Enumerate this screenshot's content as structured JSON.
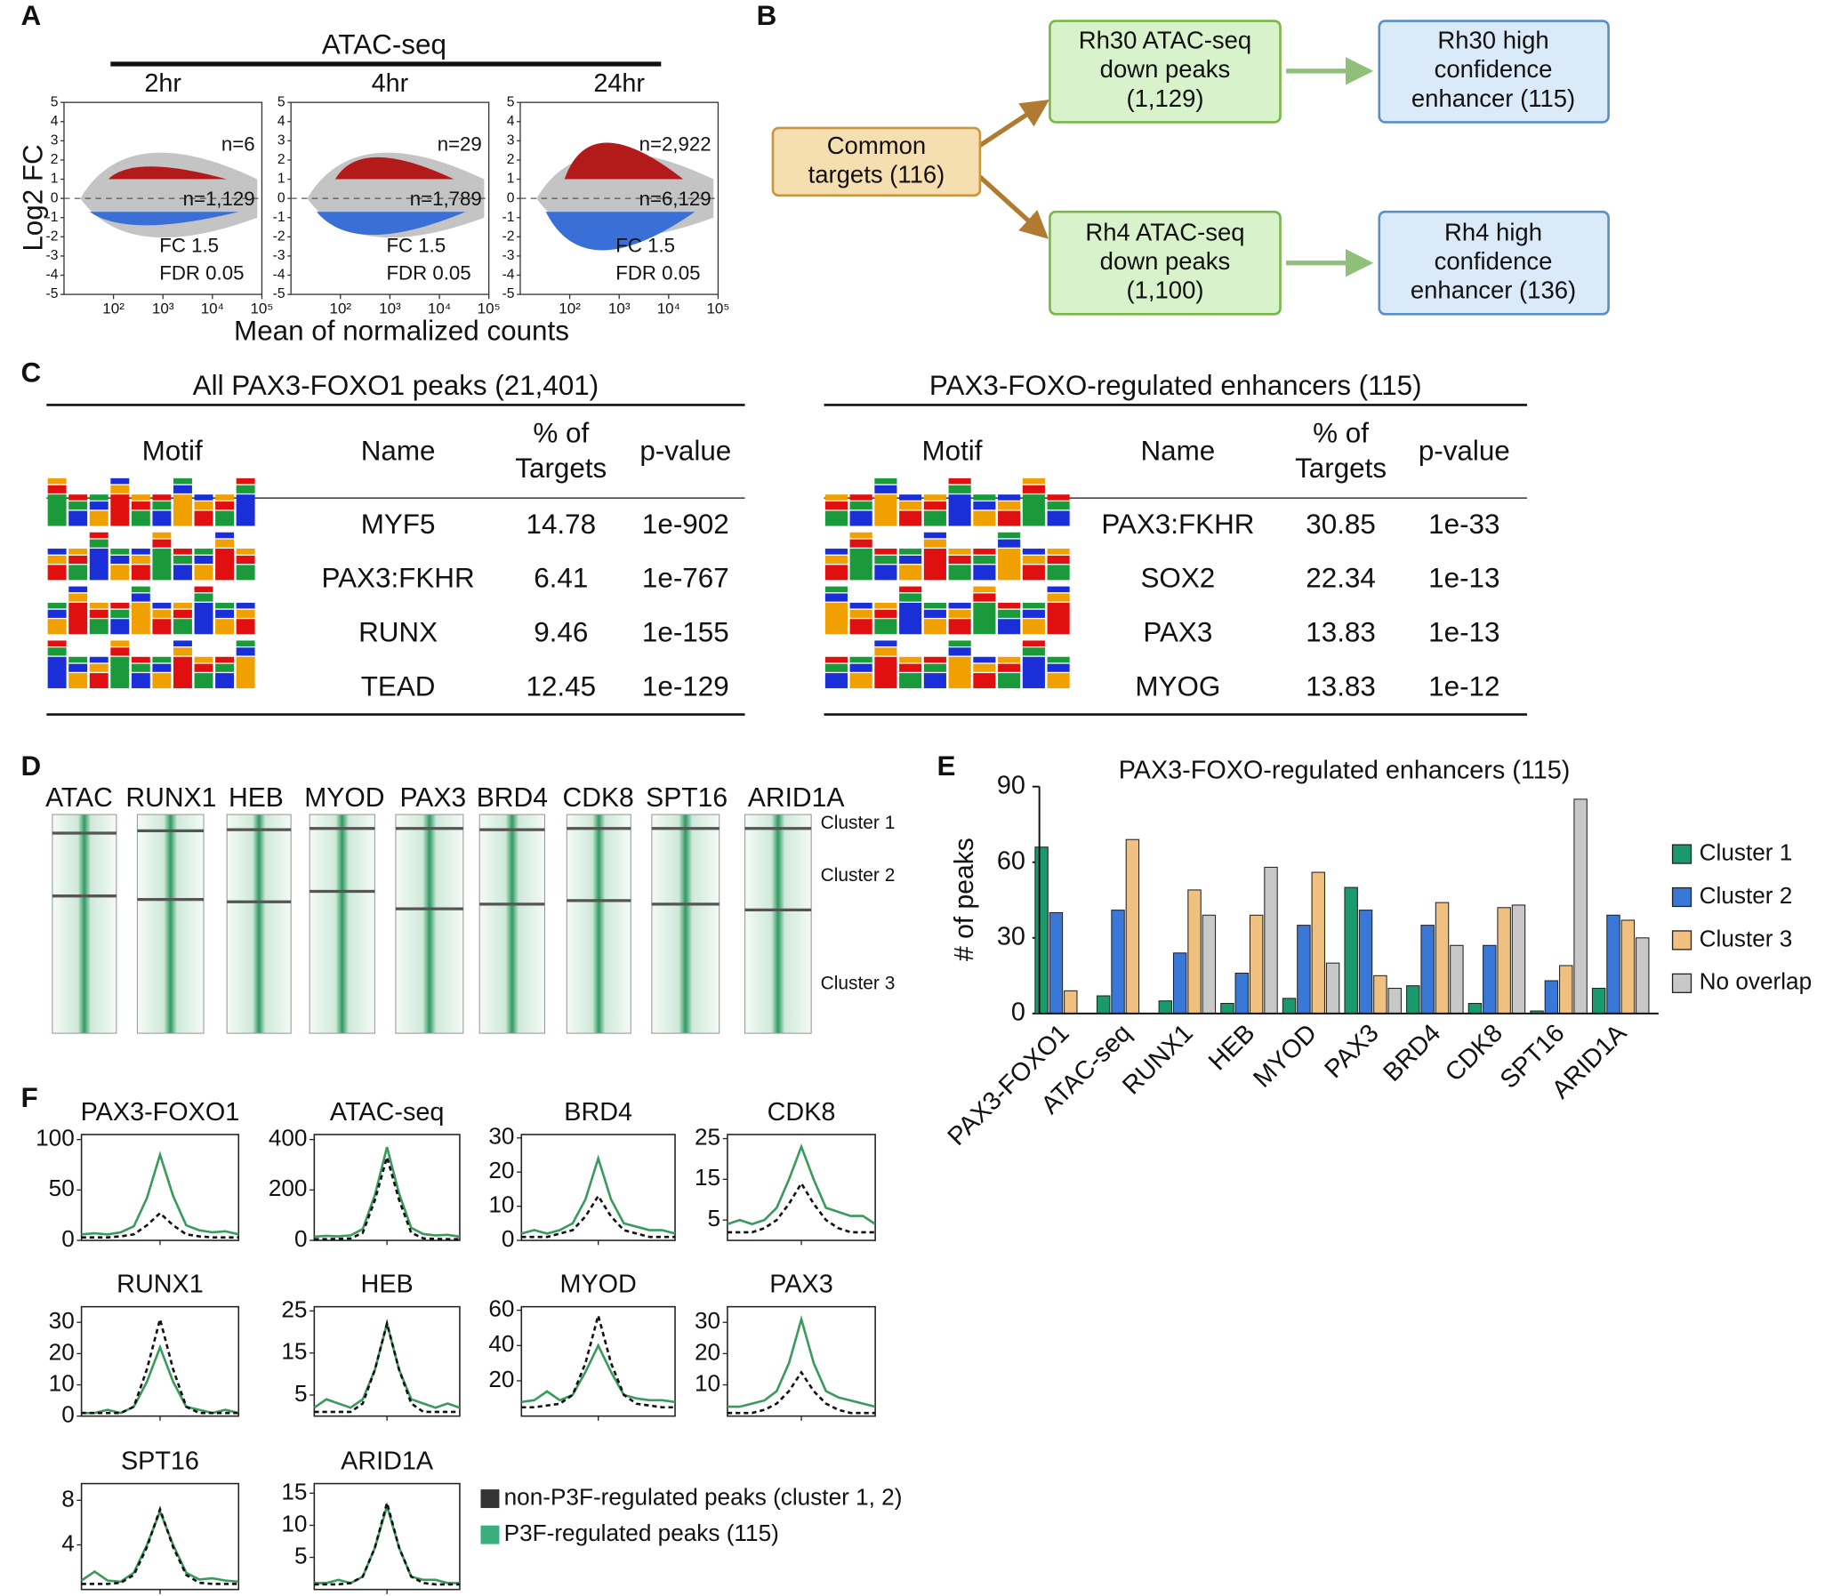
{
  "panel_labels": [
    "A",
    "B",
    "C",
    "D",
    "E",
    "F"
  ],
  "panel_a": {
    "header": "ATAC-seq",
    "ylabel": "Log2 FC",
    "xlabel": "Mean of normalized counts",
    "fc_label": "FC 1.5",
    "fdr_label": "FDR 0.05",
    "ylim": [
      -5,
      5
    ],
    "yticks": [
      5,
      4,
      3,
      2,
      1,
      0,
      -1,
      -2,
      -3,
      -4,
      -5
    ],
    "xlim": [
      10,
      100000
    ],
    "log_x": true,
    "xticks": [
      {
        "value": 100,
        "label": "10²"
      },
      {
        "value": 1000,
        "label": "10³"
      },
      {
        "value": 10000,
        "label": "10⁴"
      },
      {
        "value": 100000,
        "label": "10⁵"
      }
    ],
    "plots": [
      {
        "time": "2hr",
        "n_up": "n=6",
        "n_down": "n=1,129"
      },
      {
        "time": "4hr",
        "n_up": "n=29",
        "n_down": "n=1,789"
      },
      {
        "time": "24hr",
        "n_up": "n=2,922",
        "n_down": "n=6,129"
      }
    ]
  },
  "panel_b": {
    "nodes": [
      {
        "lines": [
          "Common",
          "targets (116)"
        ]
      },
      {
        "lines": [
          "Rh30 ATAC-seq",
          "down peaks",
          "(1,129)"
        ]
      },
      {
        "lines": [
          "Rh30 high",
          "confidence",
          "enhancer (115)"
        ]
      },
      {
        "lines": [
          "Rh4 ATAC-seq",
          "down peaks",
          "(1,100)"
        ]
      },
      {
        "lines": [
          "Rh4 high",
          "confidence",
          "enhancer (136)"
        ]
      }
    ]
  },
  "panel_c": {
    "tables": [
      {
        "title": "All PAX3-FOXO1 peaks (21,401)",
        "headers": [
          [
            "Motif"
          ],
          [
            "Name"
          ],
          [
            "% of",
            "Targets"
          ],
          [
            "p-value"
          ]
        ],
        "rows": [
          [
            "MYF5",
            14.78,
            "1e-902"
          ],
          [
            "PAX3:FKHR",
            6.41,
            "1e-767"
          ],
          [
            "RUNX",
            9.46,
            "1e-155"
          ],
          [
            "TEAD",
            12.45,
            "1e-129"
          ]
        ]
      },
      {
        "title": "PAX3-FOXO-regulated enhancers (115)",
        "headers": [
          [
            "Motif"
          ],
          [
            "Name"
          ],
          [
            "% of",
            "Targets"
          ],
          [
            "p-value"
          ]
        ],
        "rows": [
          [
            "PAX3:FKHR",
            30.85,
            "1e-33"
          ],
          [
            "SOX2",
            22.34,
            "1e-13"
          ],
          [
            "PAX3",
            13.83,
            "1e-13"
          ],
          [
            "MYOG",
            13.83,
            "1e-12"
          ]
        ]
      }
    ]
  },
  "panel_d": {
    "columns": [
      "ATAC",
      "RUNX1",
      "HEB",
      "MYOD",
      "PAX3",
      "BRD4",
      "CDK8",
      "SPT16",
      "ARID1A"
    ],
    "clusters": [
      "Cluster 1",
      "Cluster 2",
      "Cluster 3"
    ]
  },
  "chart_data": [
    {
      "type": "bar",
      "title": "PAX3-FOXO-regulated enhancers (115)",
      "ylabel": "# of peaks",
      "categories": [
        "PAX3-FOXO1",
        "ATAC-seq",
        "RUNX1",
        "HEB",
        "MYOD",
        "PAX3",
        "BRD4",
        "CDK8",
        "SPT16",
        "ARID1A"
      ],
      "series": [
        {
          "name": "Cluster 1",
          "color": "#1a9a6c",
          "values": [
            66,
            7,
            5,
            4,
            6,
            50,
            11,
            4,
            1,
            10
          ]
        },
        {
          "name": "Cluster 2",
          "color": "#3a78d8",
          "values": [
            40,
            41,
            24,
            16,
            35,
            41,
            35,
            27,
            13,
            39
          ]
        },
        {
          "name": "Cluster 3",
          "color": "#f0c080",
          "values": [
            9,
            69,
            49,
            39,
            56,
            15,
            44,
            42,
            19,
            37
          ]
        },
        {
          "name": "No overlap",
          "color": "#c8c8c8",
          "values": [
            0,
            0,
            39,
            58,
            20,
            10,
            27,
            43,
            85,
            30
          ]
        }
      ],
      "ylim": [
        0,
        90
      ],
      "yticks": [
        0,
        30,
        60,
        90
      ],
      "legend": "right"
    },
    {
      "type": "line",
      "title": "PAX3-FOXO1",
      "x": [
        0,
        1,
        2,
        3,
        4,
        5,
        6,
        7,
        8,
        9,
        10,
        11,
        12
      ],
      "xlim": [
        0,
        12
      ],
      "ylim": [
        0,
        105
      ],
      "yticks": [
        0,
        50,
        100
      ],
      "series": [
        {
          "color": "#3a9a5c",
          "style": "solid",
          "values": [
            6,
            7,
            6,
            8,
            14,
            42,
            85,
            44,
            15,
            10,
            8,
            9,
            6
          ]
        },
        {
          "color": "#111111",
          "style": "dashed",
          "values": [
            3,
            3,
            3,
            4,
            6,
            15,
            27,
            15,
            6,
            4,
            3,
            3,
            3
          ]
        }
      ]
    },
    {
      "type": "line",
      "title": "ATAC-seq",
      "x": [
        0,
        1,
        2,
        3,
        4,
        5,
        6,
        7,
        8,
        9,
        10,
        11,
        12
      ],
      "xlim": [
        0,
        12
      ],
      "ylim": [
        0,
        420
      ],
      "yticks": [
        0,
        200,
        400
      ],
      "series": [
        {
          "color": "#3a9a5c",
          "style": "solid",
          "values": [
            15,
            18,
            16,
            20,
            45,
            180,
            370,
            185,
            50,
            25,
            20,
            22,
            15
          ]
        },
        {
          "color": "#111111",
          "style": "dashed",
          "values": [
            5,
            5,
            6,
            8,
            30,
            160,
            330,
            160,
            30,
            8,
            6,
            5,
            5
          ]
        }
      ]
    },
    {
      "type": "line",
      "title": "BRD4",
      "x": [
        0,
        1,
        2,
        3,
        4,
        5,
        6,
        7,
        8,
        9,
        10,
        11,
        12
      ],
      "xlim": [
        0,
        12
      ],
      "ylim": [
        0,
        31
      ],
      "yticks": [
        0,
        10,
        20,
        30
      ],
      "series": [
        {
          "color": "#3a9a5c",
          "style": "solid",
          "values": [
            2,
            3,
            2,
            3,
            5,
            12,
            24,
            12,
            5,
            4,
            3,
            3,
            2
          ]
        },
        {
          "color": "#111111",
          "style": "dashed",
          "values": [
            1,
            1,
            1,
            2,
            3,
            7,
            13,
            7,
            3,
            2,
            1,
            1,
            1
          ]
        }
      ]
    },
    {
      "type": "line",
      "title": "CDK8",
      "x": [
        0,
        1,
        2,
        3,
        4,
        5,
        6,
        7,
        8,
        9,
        10,
        11,
        12
      ],
      "xlim": [
        0,
        12
      ],
      "ylim": [
        0,
        26
      ],
      "yticks": [
        5,
        15,
        25
      ],
      "series": [
        {
          "color": "#3a9a5c",
          "style": "solid",
          "values": [
            4,
            5,
            4,
            5,
            8,
            15,
            23,
            15,
            8,
            7,
            6,
            6,
            4
          ]
        },
        {
          "color": "#111111",
          "style": "dashed",
          "values": [
            2,
            2,
            2,
            3,
            5,
            9,
            14,
            9,
            5,
            3,
            2,
            2,
            2
          ]
        }
      ]
    },
    {
      "type": "line",
      "title": "RUNX1",
      "x": [
        0,
        1,
        2,
        3,
        4,
        5,
        6,
        7,
        8,
        9,
        10,
        11,
        12
      ],
      "xlim": [
        0,
        12
      ],
      "ylim": [
        0,
        35
      ],
      "yticks": [
        0,
        10,
        20,
        30
      ],
      "series": [
        {
          "color": "#3a9a5c",
          "style": "solid",
          "values": [
            1,
            1,
            2,
            1,
            3,
            11,
            22,
            11,
            3,
            2,
            1,
            2,
            1
          ]
        },
        {
          "color": "#111111",
          "style": "dashed",
          "values": [
            1,
            1,
            1,
            1,
            3,
            15,
            31,
            15,
            3,
            1,
            1,
            1,
            1
          ]
        }
      ]
    },
    {
      "type": "line",
      "title": "HEB",
      "x": [
        0,
        1,
        2,
        3,
        4,
        5,
        6,
        7,
        8,
        9,
        10,
        11,
        12
      ],
      "xlim": [
        0,
        12
      ],
      "ylim": [
        0,
        26
      ],
      "yticks": [
        5,
        15,
        25
      ],
      "series": [
        {
          "color": "#3a9a5c",
          "style": "solid",
          "values": [
            2,
            4,
            3,
            2,
            4,
            11,
            22,
            11,
            4,
            3,
            2,
            3,
            2
          ]
        },
        {
          "color": "#111111",
          "style": "dashed",
          "values": [
            1,
            1,
            1,
            1,
            3,
            11,
            22,
            11,
            3,
            1,
            1,
            1,
            1
          ]
        }
      ]
    },
    {
      "type": "line",
      "title": "MYOD",
      "x": [
        0,
        1,
        2,
        3,
        4,
        5,
        6,
        7,
        8,
        9,
        10,
        11,
        12
      ],
      "xlim": [
        0,
        12
      ],
      "ylim": [
        0,
        62
      ],
      "yticks": [
        20,
        40,
        60
      ],
      "series": [
        {
          "color": "#3a9a5c",
          "style": "solid",
          "values": [
            8,
            9,
            14,
            9,
            12,
            25,
            40,
            25,
            12,
            10,
            9,
            9,
            8
          ]
        },
        {
          "color": "#111111",
          "style": "dashed",
          "values": [
            5,
            5,
            6,
            7,
            12,
            30,
            57,
            30,
            12,
            7,
            6,
            5,
            5
          ]
        }
      ]
    },
    {
      "type": "line",
      "title": "PAX3",
      "x": [
        0,
        1,
        2,
        3,
        4,
        5,
        6,
        7,
        8,
        9,
        10,
        11,
        12
      ],
      "xlim": [
        0,
        12
      ],
      "ylim": [
        0,
        35
      ],
      "yticks": [
        10,
        20,
        30
      ],
      "series": [
        {
          "color": "#3a9a5c",
          "style": "solid",
          "values": [
            3,
            3,
            4,
            5,
            8,
            17,
            31,
            17,
            8,
            6,
            5,
            4,
            3
          ]
        },
        {
          "color": "#111111",
          "style": "dashed",
          "values": [
            1,
            1,
            1,
            2,
            4,
            8,
            14,
            8,
            4,
            2,
            1,
            1,
            1
          ]
        }
      ]
    },
    {
      "type": "line",
      "title": "SPT16",
      "x": [
        0,
        1,
        2,
        3,
        4,
        5,
        6,
        7,
        8,
        9,
        10,
        11,
        12
      ],
      "xlim": [
        0,
        12
      ],
      "ylim": [
        0,
        9.5
      ],
      "yticks": [
        4,
        8
      ],
      "series": [
        {
          "color": "#3a9a5c",
          "style": "solid",
          "values": [
            0.8,
            1.6,
            0.8,
            0.7,
            1.5,
            4,
            7,
            4,
            1.5,
            0.9,
            1,
            0.8,
            0.7
          ]
        },
        {
          "color": "#111111",
          "style": "dashed",
          "values": [
            0.5,
            0.5,
            0.5,
            0.6,
            1.3,
            3.8,
            7.2,
            3.8,
            1.3,
            0.6,
            0.5,
            0.5,
            0.5
          ]
        }
      ]
    },
    {
      "type": "line",
      "title": "ARID1A",
      "x": [
        0,
        1,
        2,
        3,
        4,
        5,
        6,
        7,
        8,
        9,
        10,
        11,
        12
      ],
      "xlim": [
        0,
        12
      ],
      "ylim": [
        0,
        16.5
      ],
      "yticks": [
        5,
        10,
        15
      ],
      "series": [
        {
          "color": "#3a9a5c",
          "style": "solid",
          "values": [
            1,
            1,
            1.5,
            1,
            2,
            6.5,
            13,
            6.5,
            2,
            1.5,
            1.5,
            1,
            1
          ]
        },
        {
          "color": "#111111",
          "style": "dashed",
          "values": [
            0.8,
            0.8,
            0.8,
            1,
            2,
            6.5,
            13.5,
            6.5,
            2,
            1,
            0.8,
            0.8,
            0.8
          ]
        }
      ]
    }
  ],
  "panel_f_legend": [
    {
      "name": "non-P3F-regulated peaks (cluster 1, 2)",
      "color": "#333333"
    },
    {
      "name": "P3F-regulated peaks (115)",
      "color": "#3aae7c"
    }
  ]
}
